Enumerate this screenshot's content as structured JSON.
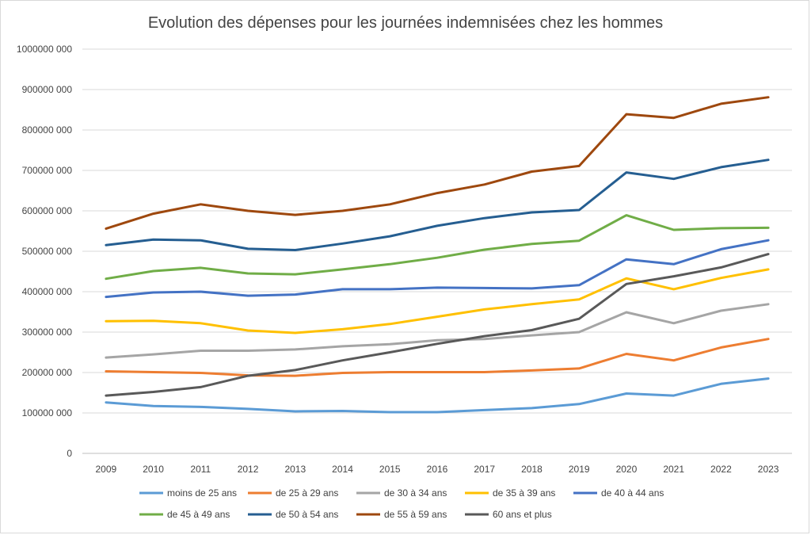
{
  "chart_data": {
    "type": "line",
    "title": "Evolution des dépenses pour les journées indemnisées chez les hommes",
    "xlabel": "",
    "ylabel": "",
    "ylim": [
      0,
      1000000000
    ],
    "yticks": [
      0,
      100000000,
      200000000,
      300000000,
      400000000,
      500000000,
      600000000,
      700000000,
      800000000,
      900000000,
      1000000000
    ],
    "ytick_labels": [
      "0",
      "100000 000",
      "200000 000",
      "300000 000",
      "400000 000",
      "500000 000",
      "600000 000",
      "700000 000",
      "800000 000",
      "900000 000",
      "1000000 000"
    ],
    "grid": true,
    "legend_position": "bottom",
    "categories": [
      "2009",
      "2010",
      "2011",
      "2012",
      "2013",
      "2014",
      "2015",
      "2016",
      "2017",
      "2018",
      "2019",
      "2020",
      "2021",
      "2022",
      "2023"
    ],
    "series": [
      {
        "name": "moins de 25 ans",
        "color": "#5b9bd5",
        "values": [
          126000000,
          117000000,
          115000000,
          110000000,
          104000000,
          105000000,
          102000000,
          102000000,
          107000000,
          112000000,
          122000000,
          148000000,
          143000000,
          172000000,
          185000000
        ]
      },
      {
        "name": "de 25 à 29 ans",
        "color": "#ed7d31",
        "values": [
          203000000,
          201000000,
          199000000,
          193000000,
          192000000,
          199000000,
          201000000,
          201000000,
          201000000,
          205000000,
          210000000,
          246000000,
          230000000,
          262000000,
          283000000
        ]
      },
      {
        "name": "de 30 à 34 ans",
        "color": "#a5a5a5",
        "values": [
          237000000,
          245000000,
          254000000,
          254000000,
          257000000,
          265000000,
          270000000,
          280000000,
          283000000,
          292000000,
          300000000,
          349000000,
          322000000,
          353000000,
          369000000
        ]
      },
      {
        "name": "de 35 à 39 ans",
        "color": "#ffc000",
        "values": [
          327000000,
          328000000,
          322000000,
          304000000,
          298000000,
          307000000,
          320000000,
          338000000,
          356000000,
          369000000,
          381000000,
          433000000,
          406000000,
          434000000,
          455000000
        ]
      },
      {
        "name": "de 40 à 44 ans",
        "color": "#4472c4",
        "values": [
          387000000,
          398000000,
          400000000,
          390000000,
          393000000,
          406000000,
          406000000,
          410000000,
          409000000,
          408000000,
          416000000,
          480000000,
          468000000,
          505000000,
          527000000
        ]
      },
      {
        "name": "de 45 à 49 ans",
        "color": "#70ad47",
        "values": [
          432000000,
          451000000,
          459000000,
          445000000,
          443000000,
          455000000,
          468000000,
          484000000,
          504000000,
          518000000,
          526000000,
          589000000,
          553000000,
          557000000,
          558000000
        ]
      },
      {
        "name": "de 50 à 54 ans",
        "color": "#255e91",
        "values": [
          515000000,
          529000000,
          527000000,
          506000000,
          503000000,
          519000000,
          537000000,
          563000000,
          582000000,
          596000000,
          602000000,
          695000000,
          679000000,
          708000000,
          726000000
        ]
      },
      {
        "name": "de 55 à 59 ans",
        "color": "#9e480e",
        "values": [
          556000000,
          593000000,
          616000000,
          600000000,
          590000000,
          600000000,
          616000000,
          644000000,
          665000000,
          697000000,
          711000000,
          839000000,
          830000000,
          865000000,
          881000000
        ]
      },
      {
        "name": "60 ans et plus",
        "color": "#595959",
        "values": [
          143000000,
          152000000,
          164000000,
          192000000,
          206000000,
          230000000,
          250000000,
          271000000,
          290000000,
          305000000,
          333000000,
          419000000,
          438000000,
          460000000,
          493000000
        ]
      }
    ]
  }
}
